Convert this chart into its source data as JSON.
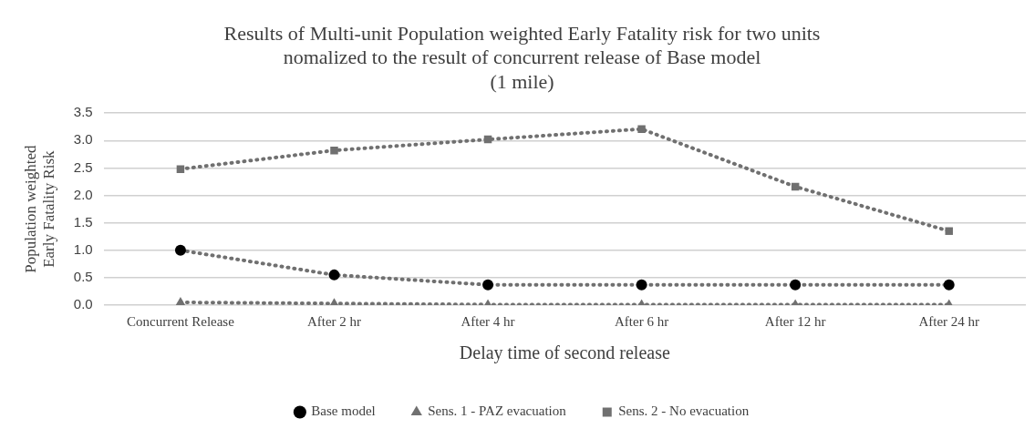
{
  "chart_data": {
    "type": "line",
    "title": [
      "Results of Multi-unit Population weighted Early Fatality risk for two units",
      "nomalized to the result of concurrent release of Base model",
      "(1 mile)"
    ],
    "xlabel": "Delay time of second release",
    "ylabel": [
      "Population weighted",
      "Early Fatality Risk"
    ],
    "categories": [
      "Concurrent Release",
      "After 2 hr",
      "After 4 hr",
      "After 6 hr",
      "After 12 hr",
      "After 24 hr"
    ],
    "series": [
      {
        "name": "Base model",
        "color": "#000000",
        "marker": "circle",
        "values": [
          1.0,
          0.55,
          0.37,
          0.37,
          0.37,
          0.37
        ]
      },
      {
        "name": "Sens. 1 - PAZ evacuation",
        "color": "#707070",
        "marker": "triangle",
        "values": [
          0.05,
          0.03,
          0.01,
          0.01,
          0.01,
          0.01
        ]
      },
      {
        "name": "Sens. 2 - No evacuation",
        "color": "#707070",
        "marker": "square",
        "values": [
          2.48,
          2.82,
          3.02,
          3.21,
          2.16,
          1.35
        ]
      }
    ],
    "ylim": [
      0,
      3.5
    ],
    "yticks": [
      {
        "value": 0,
        "label": "0.0"
      },
      0.5,
      {
        "value": 1,
        "label": "1.0"
      },
      1.5,
      {
        "value": 2,
        "label": "2.0"
      },
      2.5,
      {
        "value": 3,
        "label": "3.0"
      },
      3.5
    ],
    "grid": "y",
    "legend": "bottom",
    "line_style": "dotted"
  }
}
